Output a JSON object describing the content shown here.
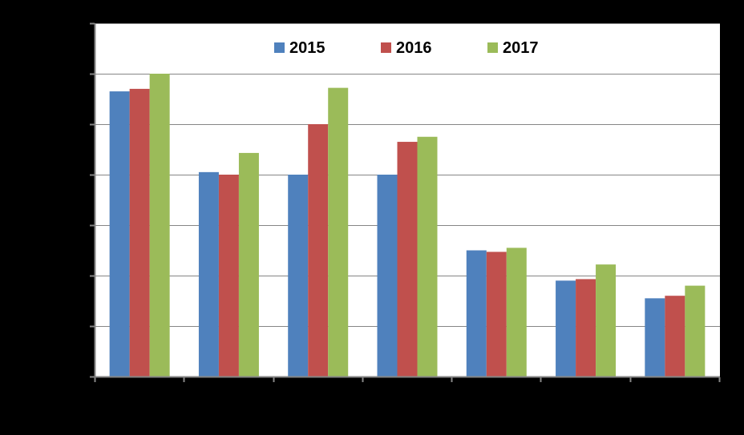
{
  "chart_data": {
    "type": "bar",
    "categories": [
      "",
      "",
      "",
      "",
      "",
      "",
      ""
    ],
    "series": [
      {
        "name": "2015",
        "color": "#4F81BD",
        "values": [
          5.65,
          4.05,
          4.0,
          4.0,
          2.5,
          1.9,
          1.55
        ]
      },
      {
        "name": "2016",
        "color": "#C0504D",
        "values": [
          5.7,
          4.0,
          5.0,
          4.65,
          2.47,
          1.93,
          1.6
        ]
      },
      {
        "name": "2017",
        "color": "#9BBB59",
        "values": [
          6.0,
          4.43,
          5.72,
          4.75,
          2.55,
          2.22,
          1.8
        ]
      }
    ],
    "title": "",
    "xlabel": "",
    "ylabel": "",
    "ylim": [
      0,
      7
    ],
    "ytick_step": 1,
    "grid": true,
    "legend_position": "top",
    "colors": {
      "background": "#000000",
      "plot_area": "#FFFFFF",
      "gridline": "#868686",
      "axis": "#868686",
      "legend_text": "#000000"
    }
  }
}
